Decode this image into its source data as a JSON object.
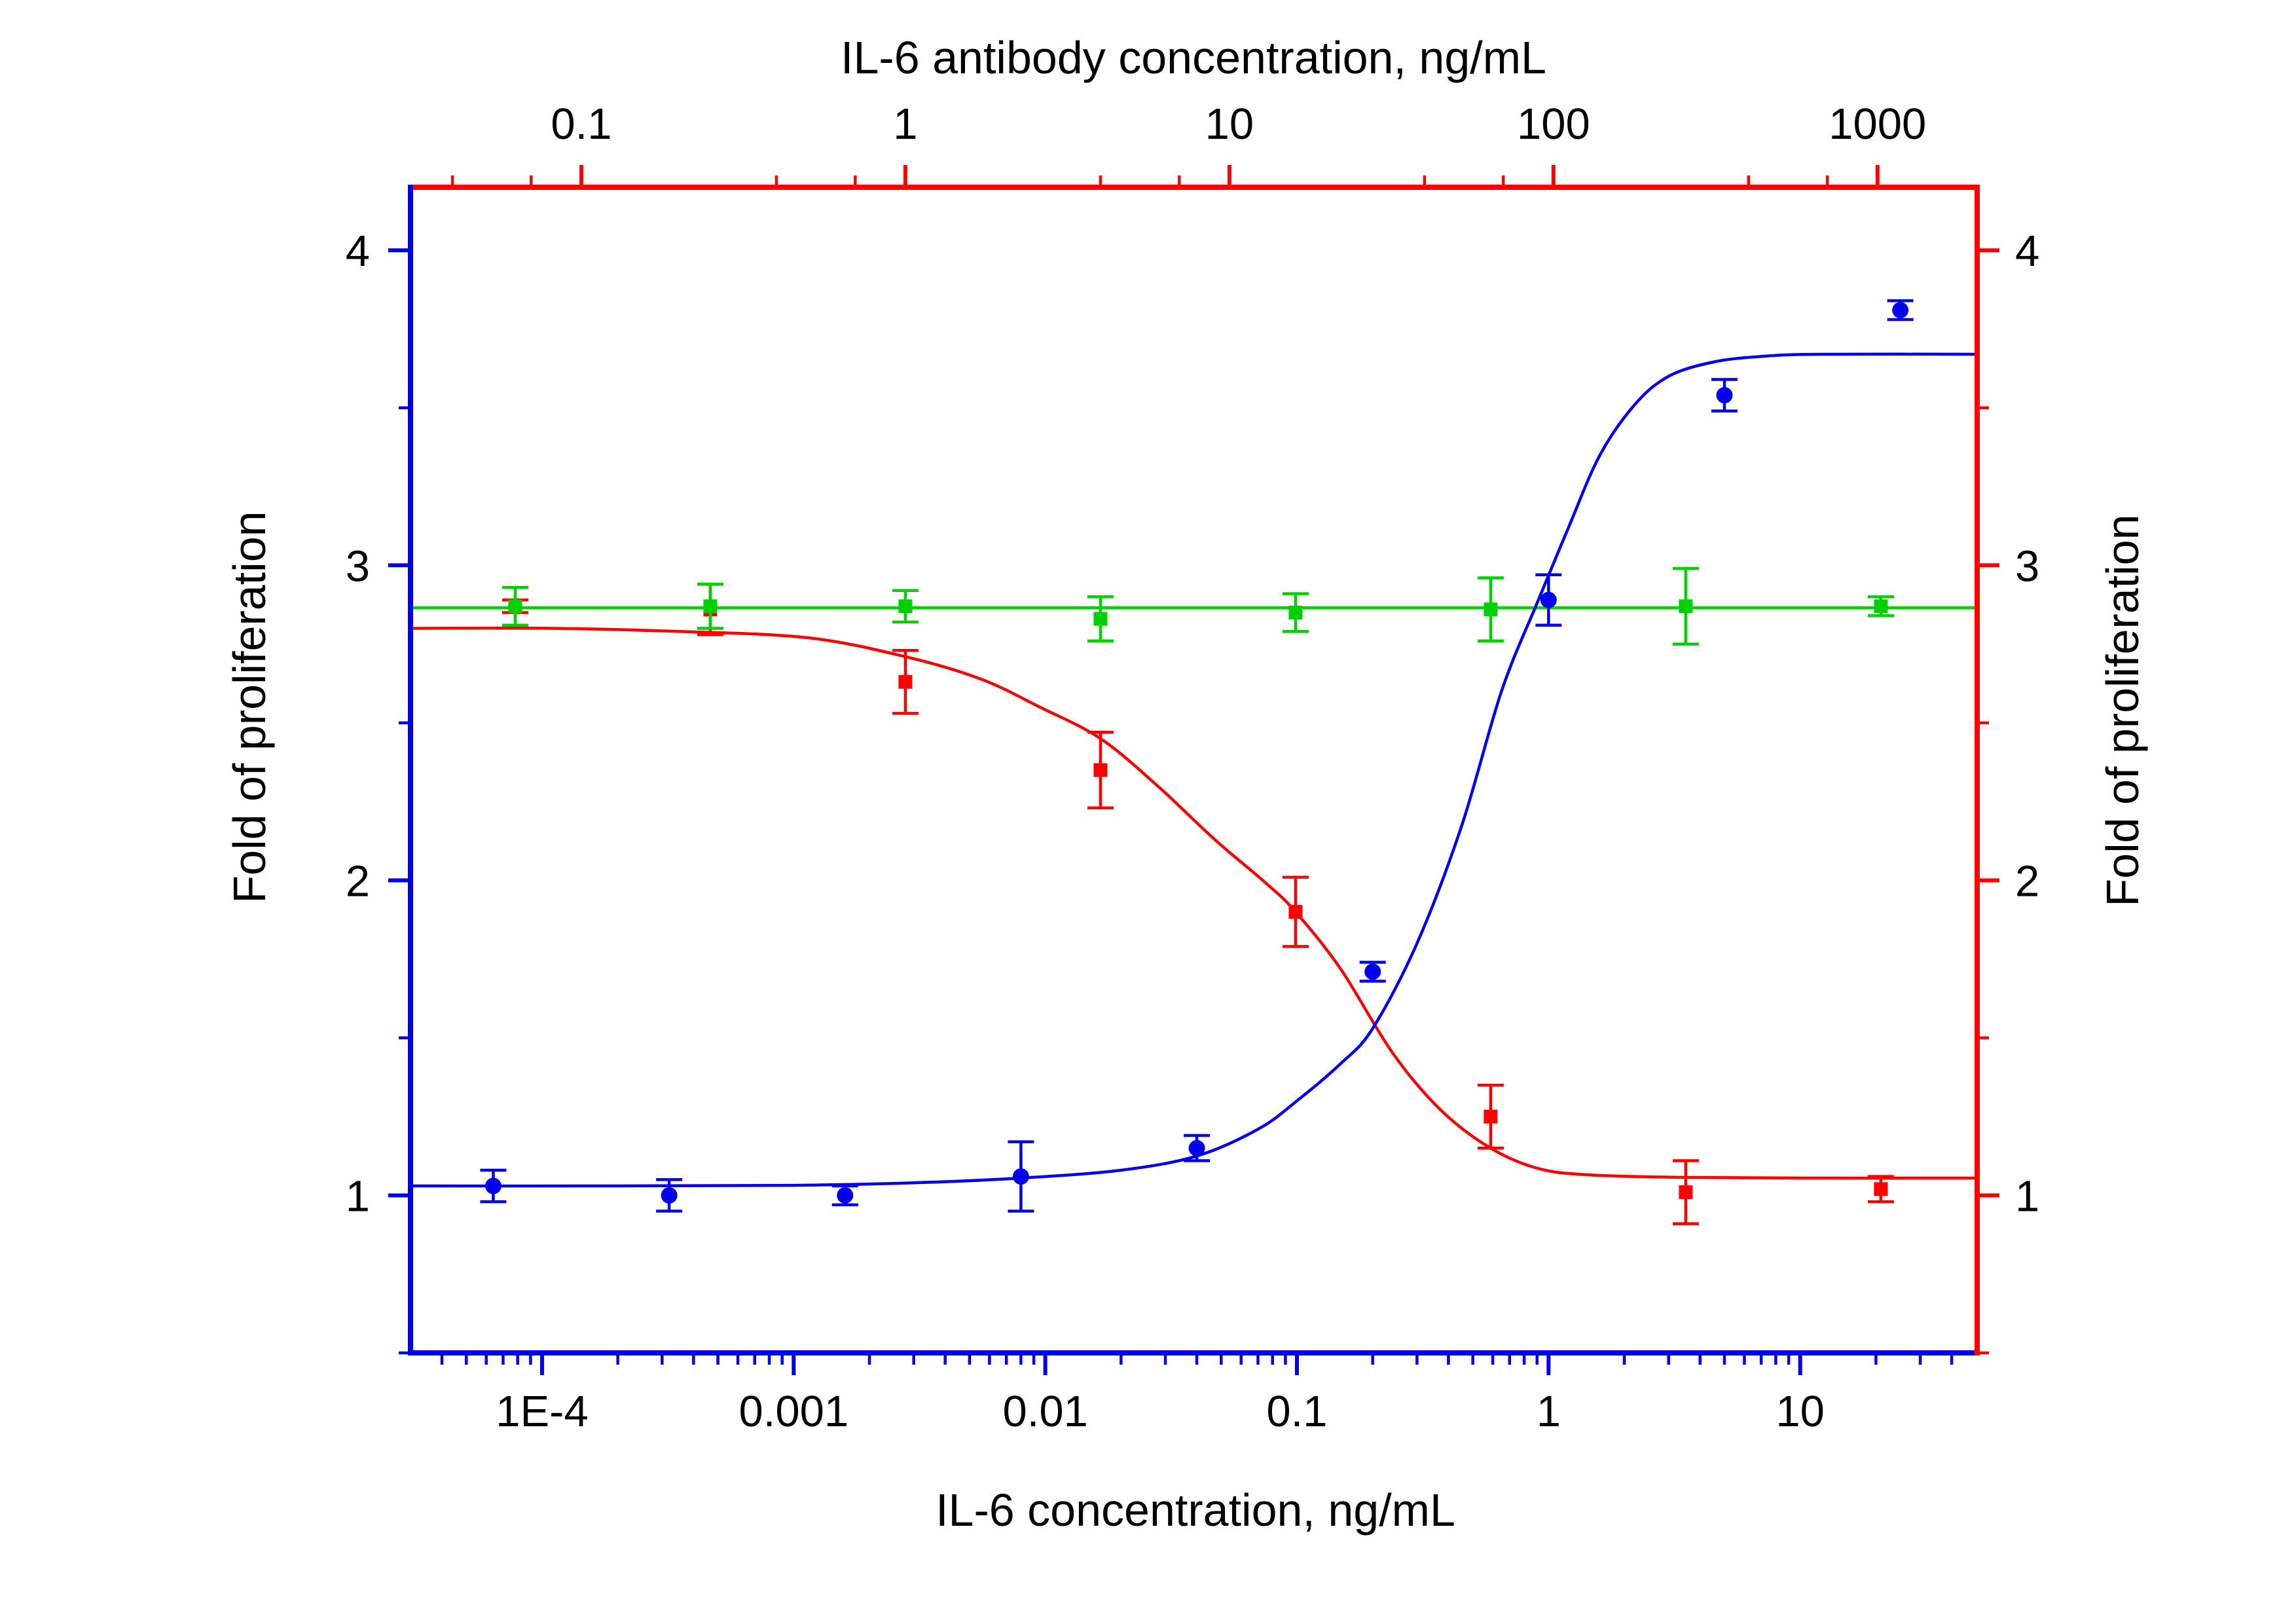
{
  "chart_data": {
    "type": "scatter",
    "title": "",
    "legend": "none",
    "grid": "off",
    "top_axis": {
      "title": "IL-6 antibody concentration, ng/mL",
      "scale": "log",
      "color": "#ff0000",
      "range": [
        0.0297,
        2030
      ],
      "major_ticks": [
        0.1,
        1,
        10,
        100,
        1000
      ],
      "tick_labels": [
        "0.1",
        "1",
        "10",
        "100",
        "1000"
      ],
      "minor_tick_mantissas": [
        4,
        7
      ]
    },
    "bottom_axis": {
      "title": "IL-6 concentration, ng/mL",
      "scale": "log",
      "color": "#0000ee",
      "range": [
        3e-05,
        50.5
      ],
      "major_ticks": [
        0.0001,
        0.001,
        0.01,
        0.1,
        1,
        10
      ],
      "tick_labels": [
        "1E-4",
        "0.001",
        "0.01",
        "0.1",
        "1",
        "10"
      ],
      "minor_tick_mantissas": [
        2,
        3,
        4,
        5,
        6,
        7,
        8,
        9
      ]
    },
    "left_axis": {
      "title": "Fold of proliferation",
      "scale": "linear",
      "color": "#0000ee",
      "range": [
        0.5,
        4.2
      ],
      "major_ticks": [
        1,
        2,
        3,
        4
      ],
      "tick_labels": [
        "1",
        "2",
        "3",
        "4"
      ],
      "minor_ticks": [
        0.5,
        1.5,
        2.5,
        3.5
      ]
    },
    "right_axis": {
      "title": "Fold of proliferation",
      "scale": "linear",
      "color": "#ff0000",
      "range": [
        0.5,
        4.2
      ],
      "major_ticks": [
        1,
        2,
        3,
        4
      ],
      "tick_labels": [
        "1",
        "2",
        "3",
        "4"
      ],
      "minor_ticks": [
        0.5,
        1.5,
        2.5,
        3.5
      ]
    },
    "series": [
      {
        "id": "red-squares",
        "axis": "top",
        "marker": "square",
        "color": "#ff0000",
        "x": [
          0.0625,
          0.25,
          1,
          4,
          16,
          64,
          256,
          1024
        ],
        "y": [
          2.87,
          2.86,
          2.63,
          2.35,
          1.9,
          1.25,
          1.01,
          1.02
        ],
        "err": [
          0.02,
          0.08,
          0.1,
          0.12,
          0.11,
          0.1,
          0.1,
          0.04
        ]
      },
      {
        "id": "green-squares",
        "axis": "top",
        "marker": "square",
        "color": "#00d000",
        "x": [
          0.0625,
          0.25,
          1,
          4,
          16,
          64,
          256,
          1024
        ],
        "y": [
          2.87,
          2.87,
          2.87,
          2.83,
          2.85,
          2.86,
          2.87,
          2.87
        ],
        "err": [
          0.06,
          0.07,
          0.05,
          0.07,
          0.06,
          0.1,
          0.12,
          0.03
        ]
      },
      {
        "id": "blue-circles",
        "axis": "bottom",
        "marker": "circle",
        "color": "#0000ee",
        "x": [
          6.4e-05,
          0.00032,
          0.0016,
          0.008,
          0.04,
          0.2,
          1,
          5,
          25
        ],
        "y": [
          1.03,
          1.0,
          1.0,
          1.06,
          1.15,
          1.71,
          2.89,
          3.54,
          3.81
        ],
        "err": [
          0.05,
          0.05,
          0.03,
          0.11,
          0.04,
          0.03,
          0.08,
          0.05,
          0.03
        ]
      }
    ],
    "fit_curves": [
      {
        "id": "red-fit",
        "axis": "top",
        "color": "#ff0000",
        "points": [
          [
            0.0297,
            2.8
          ],
          [
            0.08,
            2.8
          ],
          [
            0.2,
            2.79
          ],
          [
            0.5,
            2.77
          ],
          [
            1,
            2.71
          ],
          [
            1.7,
            2.64
          ],
          [
            2.6,
            2.55
          ],
          [
            4,
            2.45
          ],
          [
            6,
            2.3
          ],
          [
            9,
            2.13
          ],
          [
            13,
            1.99
          ],
          [
            16,
            1.9
          ],
          [
            22,
            1.72
          ],
          [
            32,
            1.45
          ],
          [
            45,
            1.27
          ],
          [
            64,
            1.15
          ],
          [
            90,
            1.085
          ],
          [
            130,
            1.065
          ],
          [
            250,
            1.057
          ],
          [
            600,
            1.055
          ],
          [
            2030,
            1.055
          ]
        ]
      },
      {
        "id": "green-fit",
        "axis": "top",
        "color": "#00d000",
        "points": [
          [
            0.0297,
            2.865
          ],
          [
            10,
            2.865
          ],
          [
            2030,
            2.865
          ]
        ]
      },
      {
        "id": "blue-fit",
        "axis": "bottom",
        "color": "#0000ee",
        "points": [
          [
            3e-05,
            1.03
          ],
          [
            0.0002,
            1.03
          ],
          [
            0.001,
            1.032
          ],
          [
            0.003,
            1.04
          ],
          [
            0.008,
            1.055
          ],
          [
            0.02,
            1.08
          ],
          [
            0.04,
            1.125
          ],
          [
            0.07,
            1.21
          ],
          [
            0.1,
            1.3
          ],
          [
            0.15,
            1.42
          ],
          [
            0.2,
            1.53
          ],
          [
            0.3,
            1.8
          ],
          [
            0.45,
            2.17
          ],
          [
            0.65,
            2.6
          ],
          [
            0.9,
            2.88
          ],
          [
            1.2,
            3.12
          ],
          [
            1.6,
            3.35
          ],
          [
            2.2,
            3.51
          ],
          [
            3,
            3.6
          ],
          [
            4.5,
            3.645
          ],
          [
            7,
            3.663
          ],
          [
            12,
            3.67
          ],
          [
            50,
            3.67
          ]
        ]
      }
    ]
  }
}
